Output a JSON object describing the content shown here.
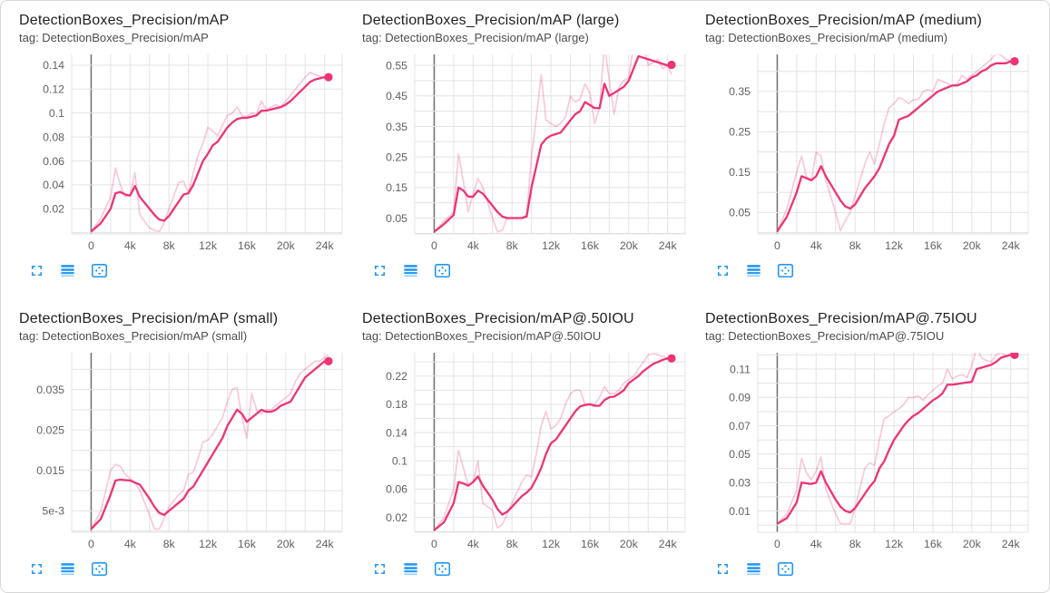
{
  "colors": {
    "accent": "#ee3377",
    "raw_opacity": 0.27,
    "grid": "#e3e3e3",
    "zero_line": "#757575",
    "icon_blue": "#2196F3",
    "tick_text": "#616161",
    "title_text": "#1f1f1f",
    "tag_text": "#4d4d4d"
  },
  "icons": {
    "expand": "expand-icon",
    "log_scale": "log-scale-icon",
    "fit_domain": "fit-domain-icon"
  },
  "chart_data": {
    "type": "line",
    "xlabel": "",
    "xlim": [
      -2000,
      25800
    ],
    "x_steps": [
      0,
      1000,
      2000,
      2500,
      3000,
      3500,
      4000,
      4500,
      5000,
      6000,
      6500,
      7000,
      7500,
      8000,
      9000,
      9500,
      10000,
      10500,
      11000,
      11500,
      12000,
      12500,
      13000,
      13500,
      14000,
      14500,
      15000,
      15500,
      16000,
      16500,
      17000,
      17500,
      18000,
      18500,
      19000,
      19500,
      20000,
      20500,
      21000,
      21500,
      22000,
      22500,
      23000,
      23500,
      24000,
      24400
    ],
    "xticks": [
      {
        "v": 0,
        "label": "0"
      },
      {
        "v": 4000,
        "label": "4k"
      },
      {
        "v": 8000,
        "label": "8k"
      },
      {
        "v": 12000,
        "label": "12k"
      },
      {
        "v": 16000,
        "label": "16k"
      },
      {
        "v": 20000,
        "label": "20k"
      },
      {
        "v": 24000,
        "label": "24k"
      }
    ],
    "x_grid_step": 2000,
    "charts": [
      {
        "title": "DetectionBoxes_Precision/mAP",
        "tag": "tag: DetectionBoxes_Precision/mAP",
        "ylim": [
          -0.001,
          0.149
        ],
        "y_grid_step": 0.02,
        "yticks": [
          {
            "v": 0.02,
            "label": "0.02"
          },
          {
            "v": 0.04,
            "label": "0.04"
          },
          {
            "v": 0.06,
            "label": "0.06"
          },
          {
            "v": 0.08,
            "label": "0.08"
          },
          {
            "v": 0.1,
            "label": "0.1"
          },
          {
            "v": 0.12,
            "label": "0.12"
          },
          {
            "v": 0.14,
            "label": "0.14"
          }
        ],
        "series": [
          {
            "name": "raw",
            "values": [
              0.001,
              0.012,
              0.03,
              0.054,
              0.04,
              0.03,
              0.031,
              0.05,
              0.015,
              0.004,
              0.002,
              0.001,
              0.008,
              0.02,
              0.042,
              0.043,
              0.033,
              0.05,
              0.065,
              0.075,
              0.088,
              0.085,
              0.081,
              0.09,
              0.098,
              0.1,
              0.105,
              0.098,
              0.097,
              0.1,
              0.099,
              0.11,
              0.103,
              0.105,
              0.107,
              0.105,
              0.11,
              0.115,
              0.12,
              0.125,
              0.13,
              0.134,
              0.132,
              0.131,
              0.13,
              0.129
            ]
          },
          {
            "name": "smoothed",
            "values": [
              0.001,
              0.008,
              0.02,
              0.033,
              0.034,
              0.032,
              0.031,
              0.039,
              0.03,
              0.02,
              0.015,
              0.011,
              0.01,
              0.014,
              0.026,
              0.032,
              0.033,
              0.04,
              0.05,
              0.06,
              0.066,
              0.073,
              0.076,
              0.082,
              0.088,
              0.092,
              0.095,
              0.096,
              0.096,
              0.097,
              0.098,
              0.102,
              0.102,
              0.103,
              0.104,
              0.105,
              0.107,
              0.11,
              0.114,
              0.118,
              0.122,
              0.126,
              0.128,
              0.129,
              0.13,
              0.13
            ]
          }
        ]
      },
      {
        "title": "DetectionBoxes_Precision/mAP (large)",
        "tag": "tag: DetectionBoxes_Precision/mAP (large)",
        "ylim": [
          -0.002,
          0.586
        ],
        "y_grid_step": 0.05,
        "yticks": [
          {
            "v": 0.05,
            "label": "0.05"
          },
          {
            "v": 0.15,
            "label": "0.15"
          },
          {
            "v": 0.25,
            "label": "0.25"
          },
          {
            "v": 0.35,
            "label": "0.35"
          },
          {
            "v": 0.45,
            "label": "0.45"
          },
          {
            "v": 0.55,
            "label": "0.55"
          }
        ],
        "series": [
          {
            "name": "raw",
            "values": [
              0.005,
              0.04,
              0.07,
              0.26,
              0.17,
              0.07,
              0.13,
              0.18,
              0.15,
              0.05,
              0.005,
              0.01,
              0.05,
              0.05,
              0.05,
              0.06,
              0.25,
              0.38,
              0.52,
              0.37,
              0.36,
              0.35,
              0.36,
              0.38,
              0.45,
              0.43,
              0.44,
              0.49,
              0.46,
              0.36,
              0.41,
              0.62,
              0.5,
              0.39,
              0.48,
              0.5,
              0.51,
              0.62,
              0.59,
              0.62,
              0.55,
              0.56,
              0.57,
              0.54,
              0.55,
              0.52
            ]
          },
          {
            "name": "smoothed",
            "values": [
              0.005,
              0.03,
              0.06,
              0.15,
              0.14,
              0.12,
              0.12,
              0.14,
              0.13,
              0.09,
              0.07,
              0.055,
              0.05,
              0.05,
              0.05,
              0.055,
              0.15,
              0.22,
              0.29,
              0.31,
              0.32,
              0.325,
              0.33,
              0.35,
              0.37,
              0.39,
              0.4,
              0.43,
              0.42,
              0.41,
              0.41,
              0.49,
              0.45,
              0.46,
              0.47,
              0.48,
              0.5,
              0.54,
              0.58,
              0.575,
              0.57,
              0.565,
              0.56,
              0.555,
              0.55,
              0.552
            ]
          }
        ]
      },
      {
        "title": "DetectionBoxes_Precision/mAP (medium)",
        "tag": "tag: DetectionBoxes_Precision/mAP (medium)",
        "ylim": [
          -0.003,
          0.442
        ],
        "y_grid_step": 0.05,
        "yticks": [
          {
            "v": 0.05,
            "label": "0.05"
          },
          {
            "v": 0.15,
            "label": "0.15"
          },
          {
            "v": 0.25,
            "label": "0.25"
          },
          {
            "v": 0.35,
            "label": "0.35"
          }
        ],
        "series": [
          {
            "name": "raw",
            "values": [
              0.003,
              0.06,
              0.15,
              0.19,
              0.14,
              0.13,
              0.2,
              0.19,
              0.13,
              0.05,
              0.005,
              0.03,
              0.05,
              0.09,
              0.17,
              0.2,
              0.17,
              0.22,
              0.27,
              0.31,
              0.32,
              0.335,
              0.33,
              0.32,
              0.33,
              0.33,
              0.35,
              0.355,
              0.35,
              0.38,
              0.375,
              0.37,
              0.365,
              0.37,
              0.39,
              0.38,
              0.39,
              0.4,
              0.41,
              0.42,
              0.43,
              0.445,
              0.44,
              0.43,
              0.425,
              0.425
            ]
          },
          {
            "name": "smoothed",
            "values": [
              0.003,
              0.04,
              0.1,
              0.14,
              0.135,
              0.13,
              0.14,
              0.165,
              0.14,
              0.1,
              0.08,
              0.065,
              0.06,
              0.07,
              0.11,
              0.125,
              0.14,
              0.16,
              0.19,
              0.22,
              0.24,
              0.28,
              0.285,
              0.29,
              0.3,
              0.31,
              0.32,
              0.33,
              0.34,
              0.35,
              0.355,
              0.36,
              0.365,
              0.365,
              0.37,
              0.375,
              0.385,
              0.39,
              0.4,
              0.405,
              0.415,
              0.42,
              0.42,
              0.42,
              0.425,
              0.425
            ]
          }
        ]
      },
      {
        "title": "DetectionBoxes_Precision/mAP (small)",
        "tag": "tag: DetectionBoxes_Precision/mAP (small)",
        "ylim": [
          -0.0003,
          0.0441
        ],
        "y_grid_step": 0.005,
        "yticks": [
          {
            "v": 0.005,
            "label": "5e-3"
          },
          {
            "v": 0.015,
            "label": "0.015"
          },
          {
            "v": 0.025,
            "label": "0.025"
          },
          {
            "v": 0.035,
            "label": "0.035"
          }
        ],
        "series": [
          {
            "name": "raw",
            "values": [
              0.0005,
              0.005,
              0.015,
              0.0165,
              0.016,
              0.014,
              0.013,
              0.012,
              0.01,
              0.004,
              0.0005,
              0.0005,
              0.003,
              0.006,
              0.009,
              0.01,
              0.014,
              0.0145,
              0.018,
              0.022,
              0.0225,
              0.024,
              0.026,
              0.028,
              0.032,
              0.035,
              0.0355,
              0.028,
              0.023,
              0.034,
              0.03,
              0.029,
              0.03,
              0.03,
              0.031,
              0.032,
              0.033,
              0.034,
              0.037,
              0.039,
              0.04,
              0.041,
              0.042,
              0.042,
              0.043,
              0.0435
            ]
          },
          {
            "name": "smoothed",
            "values": [
              0.0005,
              0.003,
              0.009,
              0.0125,
              0.0127,
              0.0126,
              0.0125,
              0.012,
              0.0115,
              0.008,
              0.006,
              0.0045,
              0.004,
              0.005,
              0.007,
              0.008,
              0.01,
              0.011,
              0.013,
              0.015,
              0.017,
              0.019,
              0.021,
              0.023,
              0.026,
              0.028,
              0.03,
              0.029,
              0.027,
              0.028,
              0.029,
              0.03,
              0.0295,
              0.0295,
              0.03,
              0.031,
              0.0315,
              0.032,
              0.034,
              0.036,
              0.038,
              0.039,
              0.04,
              0.041,
              0.042,
              0.042
            ]
          }
        ]
      },
      {
        "title": "DetectionBoxes_Precision/mAP@.50IOU",
        "tag": "tag: DetectionBoxes_Precision/mAP@.50IOU",
        "ylim": [
          -0.001,
          0.253
        ],
        "y_grid_step": 0.02,
        "yticks": [
          {
            "v": 0.02,
            "label": "0.02"
          },
          {
            "v": 0.06,
            "label": "0.06"
          },
          {
            "v": 0.1,
            "label": "0.1"
          },
          {
            "v": 0.14,
            "label": "0.14"
          },
          {
            "v": 0.18,
            "label": "0.18"
          },
          {
            "v": 0.22,
            "label": "0.22"
          }
        ],
        "series": [
          {
            "name": "raw",
            "values": [
              0.002,
              0.02,
              0.06,
              0.115,
              0.09,
              0.065,
              0.07,
              0.1,
              0.04,
              0.03,
              0.005,
              0.01,
              0.025,
              0.04,
              0.07,
              0.08,
              0.077,
              0.11,
              0.15,
              0.17,
              0.145,
              0.15,
              0.16,
              0.18,
              0.195,
              0.2,
              0.2,
              0.18,
              0.18,
              0.18,
              0.19,
              0.205,
              0.195,
              0.195,
              0.2,
              0.21,
              0.215,
              0.22,
              0.23,
              0.24,
              0.25,
              0.252,
              0.25,
              0.248,
              0.245,
              0.243
            ]
          },
          {
            "name": "smoothed",
            "values": [
              0.002,
              0.013,
              0.04,
              0.07,
              0.068,
              0.065,
              0.07,
              0.078,
              0.065,
              0.045,
              0.032,
              0.024,
              0.028,
              0.035,
              0.05,
              0.055,
              0.062,
              0.075,
              0.09,
              0.11,
              0.125,
              0.13,
              0.14,
              0.15,
              0.16,
              0.17,
              0.177,
              0.179,
              0.18,
              0.178,
              0.178,
              0.186,
              0.19,
              0.191,
              0.195,
              0.2,
              0.21,
              0.215,
              0.22,
              0.227,
              0.232,
              0.237,
              0.24,
              0.243,
              0.245,
              0.245
            ]
          }
        ]
      },
      {
        "title": "DetectionBoxes_Precision/mAP@.75IOU",
        "tag": "tag: DetectionBoxes_Precision/mAP@.75IOU",
        "ylim": [
          -0.005,
          0.1215
        ],
        "y_grid_step": 0.01,
        "yticks": [
          {
            "v": 0.01,
            "label": "0.01"
          },
          {
            "v": 0.03,
            "label": "0.03"
          },
          {
            "v": 0.05,
            "label": "0.05"
          },
          {
            "v": 0.07,
            "label": "0.07"
          },
          {
            "v": 0.09,
            "label": "0.09"
          },
          {
            "v": 0.11,
            "label": "0.11"
          }
        ],
        "series": [
          {
            "name": "raw",
            "values": [
              0.001,
              0.008,
              0.025,
              0.047,
              0.037,
              0.032,
              0.038,
              0.048,
              0.025,
              0.008,
              0.001,
              0.001,
              0.001,
              0.012,
              0.04,
              0.044,
              0.042,
              0.06,
              0.075,
              0.077,
              0.08,
              0.082,
              0.085,
              0.09,
              0.09,
              0.091,
              0.088,
              0.092,
              0.095,
              0.098,
              0.1,
              0.11,
              0.103,
              0.105,
              0.106,
              0.104,
              0.112,
              0.125,
              0.118,
              0.116,
              0.115,
              0.12,
              0.122,
              0.119,
              0.121,
              0.12
            ]
          },
          {
            "name": "smoothed",
            "values": [
              0.001,
              0.005,
              0.016,
              0.03,
              0.0295,
              0.029,
              0.03,
              0.038,
              0.03,
              0.018,
              0.013,
              0.01,
              0.009,
              0.012,
              0.022,
              0.027,
              0.031,
              0.04,
              0.045,
              0.053,
              0.06,
              0.065,
              0.07,
              0.074,
              0.077,
              0.079,
              0.082,
              0.085,
              0.088,
              0.09,
              0.093,
              0.099,
              0.099,
              0.0995,
              0.1,
              0.1005,
              0.101,
              0.11,
              0.111,
              0.112,
              0.113,
              0.115,
              0.118,
              0.119,
              0.12,
              0.12
            ]
          }
        ]
      }
    ]
  }
}
